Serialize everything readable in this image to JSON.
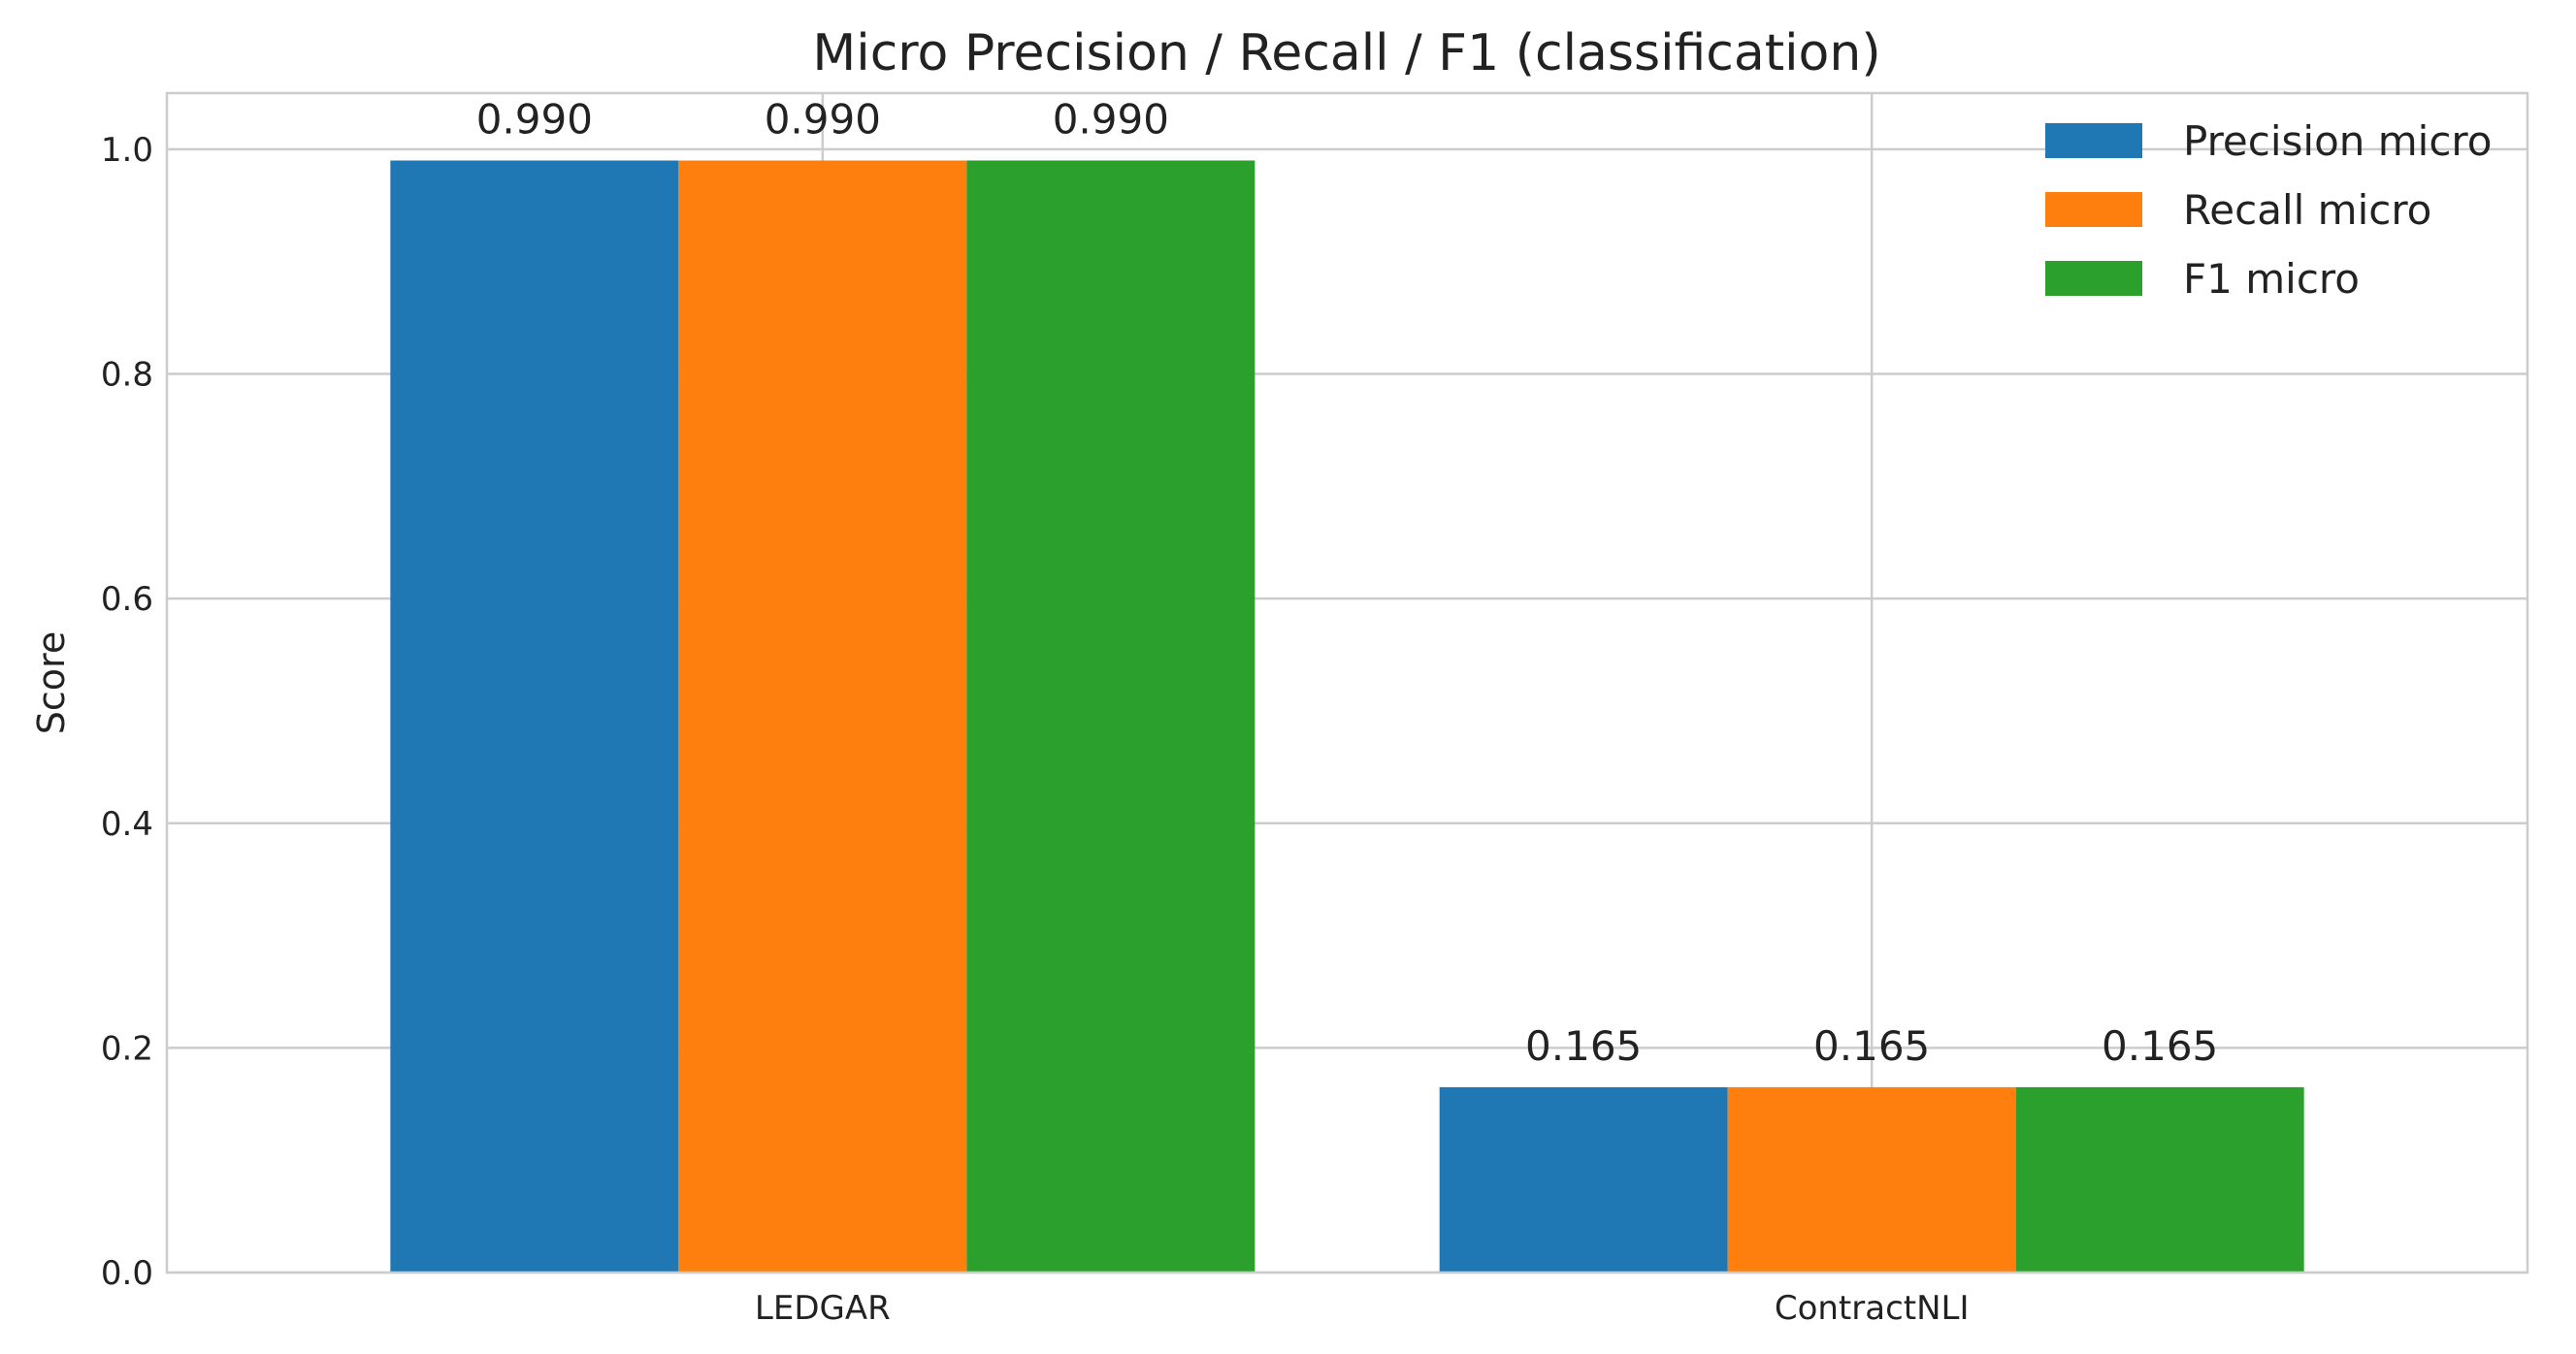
{
  "chart_data": {
    "type": "bar",
    "title": "Micro Precision / Recall / F1 (classification)",
    "xlabel": "",
    "ylabel": "Score",
    "categories": [
      "LEDGAR",
      "ContractNLI"
    ],
    "series": [
      {
        "name": "Precision micro",
        "values": [
          0.99,
          0.165
        ],
        "labels": [
          "0.990",
          "0.165"
        ],
        "color": "#1f77b4"
      },
      {
        "name": "Recall micro",
        "values": [
          0.99,
          0.165
        ],
        "labels": [
          "0.990",
          "0.165"
        ],
        "color": "#ff7f0e"
      },
      {
        "name": "F1 micro",
        "values": [
          0.99,
          0.165
        ],
        "labels": [
          "0.990",
          "0.165"
        ],
        "color": "#2ca02c"
      }
    ],
    "ylim": [
      0,
      1.05
    ],
    "yticks": [
      0.0,
      0.2,
      0.4,
      0.6,
      0.8,
      1.0
    ],
    "ytick_labels": [
      "0.0",
      "0.2",
      "0.4",
      "0.6",
      "0.8",
      "1.0"
    ],
    "grid": true,
    "legend_position": "top-right"
  }
}
